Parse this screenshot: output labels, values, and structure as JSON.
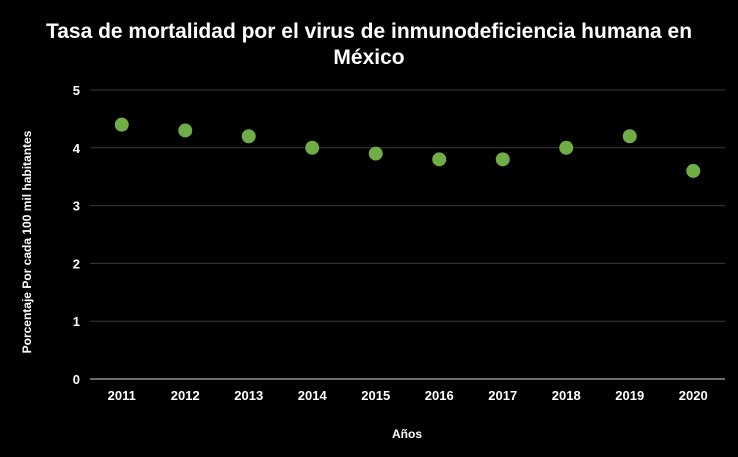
{
  "chart_data": {
    "type": "scatter",
    "title_line1": "Tasa de mortalidad por el virus de inmunodeficiencia humana en",
    "title_line2": "México",
    "xlabel": "Años",
    "ylabel": "Porcentaje Por cada 100 mil habitantes",
    "categories": [
      "2011",
      "2012",
      "2013",
      "2014",
      "2015",
      "2016",
      "2017",
      "2018",
      "2019",
      "2020"
    ],
    "values": [
      4.4,
      4.3,
      4.2,
      4.0,
      3.9,
      3.8,
      3.8,
      4.0,
      4.2,
      3.6
    ],
    "ylim": [
      0,
      5
    ],
    "yticks": [
      "0",
      "1",
      "2",
      "3",
      "4",
      "5"
    ],
    "grid": true,
    "legend": "none",
    "marker_color": "#70ad47"
  }
}
